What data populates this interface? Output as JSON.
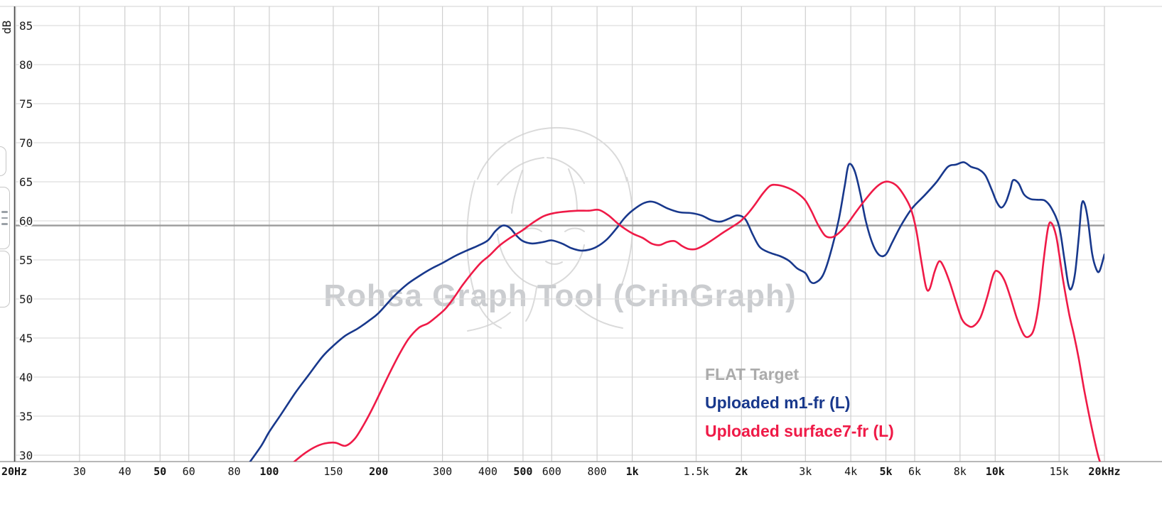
{
  "watermark": {
    "text": "Rohsa Graph Tool (CrinGraph)"
  },
  "left_edge_tabs": {
    "count": 3,
    "menu_icon": "hamburger-icon"
  },
  "chart_data": {
    "type": "line",
    "title": "",
    "x_axis": {
      "scale": "log",
      "min": 20,
      "max": 20000,
      "unit": "Hz",
      "ticks": [
        {
          "f": 20,
          "label": "20Hz",
          "bold": true
        },
        {
          "f": 30,
          "label": "30",
          "bold": false
        },
        {
          "f": 40,
          "label": "40",
          "bold": false
        },
        {
          "f": 50,
          "label": "50",
          "bold": true
        },
        {
          "f": 60,
          "label": "60",
          "bold": false
        },
        {
          "f": 80,
          "label": "80",
          "bold": false
        },
        {
          "f": 100,
          "label": "100",
          "bold": true
        },
        {
          "f": 150,
          "label": "150",
          "bold": false
        },
        {
          "f": 200,
          "label": "200",
          "bold": true
        },
        {
          "f": 300,
          "label": "300",
          "bold": false
        },
        {
          "f": 400,
          "label": "400",
          "bold": false
        },
        {
          "f": 500,
          "label": "500",
          "bold": true
        },
        {
          "f": 600,
          "label": "600",
          "bold": false
        },
        {
          "f": 800,
          "label": "800",
          "bold": false
        },
        {
          "f": 1000,
          "label": "1k",
          "bold": true
        },
        {
          "f": 1500,
          "label": "1.5k",
          "bold": false
        },
        {
          "f": 2000,
          "label": "2k",
          "bold": true
        },
        {
          "f": 3000,
          "label": "3k",
          "bold": false
        },
        {
          "f": 4000,
          "label": "4k",
          "bold": false
        },
        {
          "f": 5000,
          "label": "5k",
          "bold": true
        },
        {
          "f": 6000,
          "label": "6k",
          "bold": false
        },
        {
          "f": 8000,
          "label": "8k",
          "bold": false
        },
        {
          "f": 10000,
          "label": "10k",
          "bold": true
        },
        {
          "f": 15000,
          "label": "15k",
          "bold": false
        },
        {
          "f": 20000,
          "label": "20kHz",
          "bold": true
        }
      ]
    },
    "y_axis": {
      "label": "dB",
      "min": 30,
      "max": 85,
      "step": 5,
      "ticks": [
        85,
        80,
        75,
        70,
        65,
        60,
        55,
        50,
        45,
        40,
        35,
        30
      ]
    },
    "grid": true,
    "target": {
      "label": "FLAT Target",
      "db": 59.4,
      "color": "#9b9b9b"
    },
    "series": [
      {
        "name": "Uploaded m1-fr (L)",
        "color": "#18388c",
        "points": [
          [
            88,
            29
          ],
          [
            95,
            31.2
          ],
          [
            100,
            33
          ],
          [
            108,
            35.3
          ],
          [
            118,
            38
          ],
          [
            128,
            40.2
          ],
          [
            140,
            42.6
          ],
          [
            150,
            44
          ],
          [
            162,
            45.3
          ],
          [
            175,
            46.2
          ],
          [
            188,
            47.2
          ],
          [
            200,
            48.2
          ],
          [
            220,
            50.3
          ],
          [
            240,
            51.9
          ],
          [
            260,
            53
          ],
          [
            280,
            53.9
          ],
          [
            300,
            54.6
          ],
          [
            325,
            55.5
          ],
          [
            350,
            56.2
          ],
          [
            375,
            56.8
          ],
          [
            400,
            57.5
          ],
          [
            420,
            58.7
          ],
          [
            440,
            59.4
          ],
          [
            460,
            59.1
          ],
          [
            480,
            58.1
          ],
          [
            500,
            57.4
          ],
          [
            530,
            57.1
          ],
          [
            570,
            57.3
          ],
          [
            600,
            57.5
          ],
          [
            640,
            57.1
          ],
          [
            680,
            56.5
          ],
          [
            720,
            56.2
          ],
          [
            760,
            56.3
          ],
          [
            800,
            56.7
          ],
          [
            850,
            57.6
          ],
          [
            900,
            58.9
          ],
          [
            950,
            60.3
          ],
          [
            1000,
            61.3
          ],
          [
            1080,
            62.3
          ],
          [
            1150,
            62.4
          ],
          [
            1250,
            61.6
          ],
          [
            1350,
            61.1
          ],
          [
            1450,
            61
          ],
          [
            1550,
            60.7
          ],
          [
            1650,
            60.1
          ],
          [
            1750,
            59.9
          ],
          [
            1850,
            60.3
          ],
          [
            1950,
            60.7
          ],
          [
            2050,
            60.2
          ],
          [
            2150,
            58.2
          ],
          [
            2250,
            56.6
          ],
          [
            2400,
            55.9
          ],
          [
            2550,
            55.5
          ],
          [
            2700,
            54.9
          ],
          [
            2850,
            53.9
          ],
          [
            3000,
            53.3
          ],
          [
            3100,
            52.2
          ],
          [
            3200,
            52.1
          ],
          [
            3350,
            53
          ],
          [
            3500,
            55.5
          ],
          [
            3700,
            60
          ],
          [
            3850,
            64.5
          ],
          [
            3950,
            67.2
          ],
          [
            4100,
            66.4
          ],
          [
            4250,
            63.5
          ],
          [
            4400,
            60
          ],
          [
            4600,
            57
          ],
          [
            4800,
            55.6
          ],
          [
            5000,
            55.7
          ],
          [
            5200,
            57.2
          ],
          [
            5500,
            59.4
          ],
          [
            5900,
            61.6
          ],
          [
            6400,
            63.3
          ],
          [
            6900,
            65
          ],
          [
            7400,
            66.9
          ],
          [
            7800,
            67.2
          ],
          [
            8200,
            67.5
          ],
          [
            8600,
            66.9
          ],
          [
            9000,
            66.6
          ],
          [
            9400,
            65.8
          ],
          [
            9800,
            63.9
          ],
          [
            10100,
            62.4
          ],
          [
            10400,
            61.7
          ],
          [
            10700,
            62.4
          ],
          [
            11000,
            64
          ],
          [
            11200,
            65.2
          ],
          [
            11600,
            64.8
          ],
          [
            12000,
            63.4
          ],
          [
            12500,
            62.8
          ],
          [
            13100,
            62.7
          ],
          [
            13700,
            62.6
          ],
          [
            14300,
            61.6
          ],
          [
            15000,
            59.3
          ],
          [
            15500,
            55.2
          ],
          [
            15900,
            51.9
          ],
          [
            16200,
            51.3
          ],
          [
            16600,
            53.3
          ],
          [
            17000,
            58
          ],
          [
            17300,
            62
          ],
          [
            17600,
            62.3
          ],
          [
            18000,
            60.2
          ],
          [
            18500,
            55.8
          ],
          [
            19000,
            53.8
          ],
          [
            19400,
            53.6
          ],
          [
            20000,
            55.7
          ]
        ]
      },
      {
        "name": "Uploaded surface7-fr (L)",
        "color": "#ef1a47",
        "points": [
          [
            116,
            29
          ],
          [
            124,
            30.1
          ],
          [
            133,
            31
          ],
          [
            142,
            31.5
          ],
          [
            152,
            31.6
          ],
          [
            162,
            31.2
          ],
          [
            172,
            32.1
          ],
          [
            182,
            33.9
          ],
          [
            192,
            35.9
          ],
          [
            202,
            38
          ],
          [
            215,
            40.6
          ],
          [
            228,
            42.9
          ],
          [
            242,
            44.9
          ],
          [
            258,
            46.3
          ],
          [
            274,
            46.9
          ],
          [
            290,
            47.8
          ],
          [
            305,
            48.7
          ],
          [
            322,
            50.1
          ],
          [
            340,
            51.7
          ],
          [
            360,
            53.2
          ],
          [
            382,
            54.6
          ],
          [
            405,
            55.6
          ],
          [
            430,
            56.8
          ],
          [
            460,
            57.8
          ],
          [
            495,
            58.7
          ],
          [
            530,
            59.7
          ],
          [
            570,
            60.6
          ],
          [
            610,
            61
          ],
          [
            660,
            61.2
          ],
          [
            710,
            61.3
          ],
          [
            760,
            61.3
          ],
          [
            810,
            61.4
          ],
          [
            860,
            60.7
          ],
          [
            910,
            59.7
          ],
          [
            960,
            58.9
          ],
          [
            1010,
            58.3
          ],
          [
            1070,
            57.8
          ],
          [
            1130,
            57.1
          ],
          [
            1190,
            56.9
          ],
          [
            1250,
            57.3
          ],
          [
            1310,
            57.4
          ],
          [
            1370,
            56.8
          ],
          [
            1430,
            56.4
          ],
          [
            1500,
            56.4
          ],
          [
            1580,
            56.9
          ],
          [
            1680,
            57.7
          ],
          [
            1780,
            58.5
          ],
          [
            1880,
            59.2
          ],
          [
            1980,
            59.9
          ],
          [
            2080,
            60.9
          ],
          [
            2180,
            62.1
          ],
          [
            2290,
            63.5
          ],
          [
            2400,
            64.5
          ],
          [
            2500,
            64.6
          ],
          [
            2620,
            64.4
          ],
          [
            2750,
            64
          ],
          [
            2880,
            63.4
          ],
          [
            3000,
            62.6
          ],
          [
            3120,
            61.2
          ],
          [
            3250,
            59.5
          ],
          [
            3400,
            58.1
          ],
          [
            3550,
            57.9
          ],
          [
            3700,
            58.4
          ],
          [
            3900,
            59.5
          ],
          [
            4100,
            60.9
          ],
          [
            4350,
            62.5
          ],
          [
            4650,
            64.1
          ],
          [
            4900,
            64.9
          ],
          [
            5100,
            65
          ],
          [
            5350,
            64.5
          ],
          [
            5600,
            63.3
          ],
          [
            5850,
            61.6
          ],
          [
            6050,
            59
          ],
          [
            6250,
            55
          ],
          [
            6450,
            51.5
          ],
          [
            6600,
            51.3
          ],
          [
            6800,
            53.4
          ],
          [
            7000,
            54.8
          ],
          [
            7200,
            54.2
          ],
          [
            7500,
            52.1
          ],
          [
            7800,
            49.6
          ],
          [
            8100,
            47.4
          ],
          [
            8400,
            46.6
          ],
          [
            8700,
            46.5
          ],
          [
            9100,
            47.6
          ],
          [
            9500,
            50.2
          ],
          [
            9900,
            53.2
          ],
          [
            10200,
            53.5
          ],
          [
            10600,
            52.4
          ],
          [
            11000,
            50.3
          ],
          [
            11500,
            47.4
          ],
          [
            12000,
            45.4
          ],
          [
            12400,
            45.2
          ],
          [
            12800,
            46.2
          ],
          [
            13200,
            49.5
          ],
          [
            13600,
            55
          ],
          [
            14000,
            59.2
          ],
          [
            14300,
            59.7
          ],
          [
            14700,
            58.2
          ],
          [
            15000,
            55.8
          ],
          [
            15400,
            52.3
          ],
          [
            16000,
            48
          ],
          [
            16500,
            45.3
          ],
          [
            17000,
            42.3
          ],
          [
            17600,
            38.3
          ],
          [
            18300,
            34.3
          ],
          [
            19200,
            30
          ],
          [
            20000,
            27.5
          ]
        ]
      }
    ],
    "legend": {
      "position": "bottom-right",
      "entries": [
        {
          "label": "FLAT Target",
          "color": "#ababab"
        },
        {
          "label": "Uploaded m1-fr (L)",
          "color": "#18388c"
        },
        {
          "label": "Uploaded surface7-fr (L)",
          "color": "#ef1a47"
        }
      ]
    }
  }
}
